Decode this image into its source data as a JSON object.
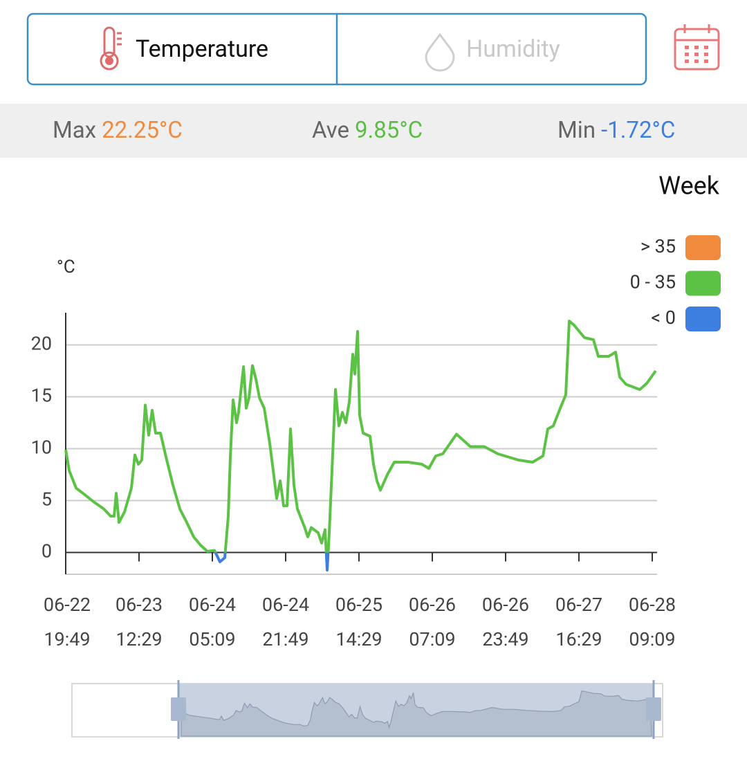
{
  "tabs": [
    "Temperature",
    "Humidity"
  ],
  "stats": [
    {
      "label": "Max",
      "value": "22.25°C",
      "color": "#f08a3c"
    },
    {
      "label": "Ave",
      "value": "9.85°C",
      "color": "#5cbc45"
    },
    {
      "label": "Min",
      "value": "-1.72°C",
      "color": "#3d7fe0"
    }
  ],
  "range": "Week",
  "chart_data": {
    "type": "line",
    "y_label": "°C",
    "pieces": [
      {
        "label": "> 35",
        "min": 35,
        "color": "#f08a3c"
      },
      {
        "label": "0 - 35",
        "min": 0,
        "max": 35,
        "color": "#5cc246"
      },
      {
        "label": "< 0",
        "max": 0,
        "color": "#3d7fe0"
      }
    ],
    "xlim": [
      0,
      8.066
    ],
    "xticks": [
      {
        "value": 0,
        "label": [
          "06-22",
          "19:49"
        ]
      },
      {
        "value": 1,
        "label": [
          "06-23",
          "12:29"
        ]
      },
      {
        "value": 2,
        "label": [
          "06-24",
          "05:09"
        ]
      },
      {
        "value": 3,
        "label": [
          "06-24",
          "21:49"
        ]
      },
      {
        "value": 4,
        "label": [
          "06-25",
          "14:29"
        ]
      },
      {
        "value": 5,
        "label": [
          "06-26",
          "07:09"
        ]
      },
      {
        "value": 6,
        "label": [
          "06-26",
          "23:49"
        ]
      },
      {
        "value": 7,
        "label": [
          "06-27",
          "16:29"
        ]
      },
      {
        "value": 8,
        "label": [
          "06-28",
          "09:09"
        ]
      }
    ],
    "ylim": [
      -2.1,
      23.1
    ],
    "yticks": [
      0,
      5,
      10,
      15,
      20
    ],
    "grid": true,
    "x": [
      0,
      0.047,
      0.142,
      0.236,
      0.377,
      0.519,
      0.613,
      0.66,
      0.689,
      0.726,
      0.802,
      0.896,
      0.943,
      0.991,
      1.038,
      1.085,
      1.132,
      1.179,
      1.226,
      1.292,
      1.368,
      1.462,
      1.557,
      1.651,
      1.745,
      1.84,
      1.934,
      2.028,
      2.104,
      2.17,
      2.217,
      2.245,
      2.283,
      2.33,
      2.358,
      2.425,
      2.462,
      2.5,
      2.547,
      2.594,
      2.642,
      2.708,
      2.783,
      2.83,
      2.877,
      2.925,
      2.972,
      3.019,
      3.066,
      3.113,
      3.16,
      3.255,
      3.302,
      3.349,
      3.443,
      3.491,
      3.538,
      3.566,
      3.594,
      3.632,
      3.679,
      3.726,
      3.774,
      3.821,
      3.868,
      3.915,
      3.943,
      3.981,
      4.009,
      4.057,
      4.151,
      4.198,
      4.245,
      4.292,
      4.387,
      4.481,
      4.67,
      4.858,
      4.953,
      5.047,
      5.142,
      5.33,
      5.519,
      5.708,
      5.896,
      6.179,
      6.368,
      6.509,
      6.575,
      6.651,
      6.745,
      6.821,
      6.868,
      6.934,
      7.075,
      7.198,
      7.264,
      7.406,
      7.5,
      7.557,
      7.642,
      7.83,
      7.925,
      8.047
    ],
    "series": [
      {
        "values": [
          9.9,
          7.9,
          6.2,
          5.7,
          4.9,
          4.2,
          3.5,
          3.5,
          5.7,
          2.9,
          3.9,
          6.2,
          9.4,
          8.5,
          8.9,
          14.2,
          11.3,
          13.7,
          11.5,
          11.5,
          9.2,
          6.5,
          4.2,
          2.9,
          1.5,
          0.7,
          0.1,
          0.2,
          -0.9,
          -0.5,
          3.5,
          9.2,
          14.7,
          12.5,
          13.5,
          17.9,
          13.9,
          14.9,
          18,
          16.7,
          14.9,
          13.9,
          10.5,
          7.9,
          5.2,
          6.9,
          4.5,
          4.5,
          11.9,
          6.5,
          4.2,
          2.5,
          1.5,
          2.4,
          1.9,
          0.9,
          2.2,
          -1.7,
          1.9,
          7.9,
          15.7,
          12.2,
          13.5,
          12.5,
          14.5,
          19.1,
          17.2,
          21.3,
          13.2,
          11.5,
          11.2,
          8.5,
          6.9,
          6,
          7.5,
          8.7,
          8.7,
          8.5,
          8.1,
          9.3,
          9.5,
          11.4,
          10.2,
          10.2,
          9.5,
          8.9,
          8.7,
          9.3,
          11.9,
          12.2,
          13.9,
          15.2,
          22.3,
          21.9,
          20.7,
          20.5,
          18.9,
          18.9,
          19.3,
          16.9,
          16.2,
          15.7,
          16.3,
          17.5
        ]
      }
    ]
  }
}
